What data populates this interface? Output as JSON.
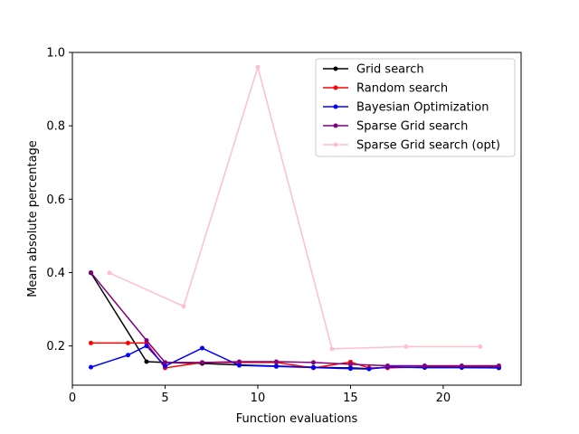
{
  "chart_data": {
    "type": "line",
    "xlabel": "Function evaluations",
    "ylabel": "Mean absolute percentage",
    "xlim": [
      0,
      24.2
    ],
    "ylim": [
      0.093,
      1.0
    ],
    "xticks": [
      0,
      5,
      10,
      15,
      20
    ],
    "yticks": [
      0.2,
      0.4,
      0.6,
      0.8,
      1.0
    ],
    "xtick_labels": [
      "0",
      "5",
      "10",
      "15",
      "20"
    ],
    "ytick_labels": [
      "0.2",
      "0.4",
      "0.6",
      "0.8",
      "1.0"
    ],
    "grid": false,
    "legend_position": "top-right",
    "series": [
      {
        "name": "Grid search",
        "color": "#000000",
        "x": [
          1,
          4,
          5,
          7,
          9,
          11,
          13,
          15,
          16,
          17,
          19,
          21,
          23
        ],
        "y": [
          0.399,
          0.157,
          0.155,
          0.152,
          0.148,
          0.145,
          0.142,
          0.14,
          0.138,
          0.142,
          0.141,
          0.141,
          0.14
        ]
      },
      {
        "name": "Random search",
        "color": "#ff0000",
        "x": [
          1,
          3,
          4,
          5,
          7,
          9,
          11,
          13,
          15,
          16,
          17,
          19,
          21,
          23
        ],
        "y": [
          0.208,
          0.208,
          0.208,
          0.14,
          0.155,
          0.155,
          0.155,
          0.14,
          0.156,
          0.14,
          0.14,
          0.143,
          0.143,
          0.143
        ]
      },
      {
        "name": "Bayesian Optimization",
        "color": "#0000ff",
        "x": [
          1,
          3,
          4,
          5,
          7,
          9,
          11,
          13,
          15,
          16,
          17,
          19,
          21,
          23
        ],
        "y": [
          0.142,
          0.175,
          0.2,
          0.145,
          0.194,
          0.147,
          0.144,
          0.141,
          0.138,
          0.137,
          0.143,
          0.141,
          0.141,
          0.141
        ]
      },
      {
        "name": "Sparse Grid search",
        "color": "#800080",
        "x": [
          1,
          4,
          5,
          7,
          9,
          11,
          13,
          15,
          17,
          19,
          21,
          23
        ],
        "y": [
          0.4,
          0.215,
          0.155,
          0.155,
          0.157,
          0.157,
          0.155,
          0.15,
          0.146,
          0.146,
          0.146,
          0.146
        ]
      },
      {
        "name": "Sparse Grid search (opt)",
        "color": "#ffc0cb",
        "x": [
          2,
          6,
          10,
          14,
          18,
          22
        ],
        "y": [
          0.399,
          0.308,
          0.96,
          0.192,
          0.198,
          0.198
        ]
      }
    ]
  }
}
